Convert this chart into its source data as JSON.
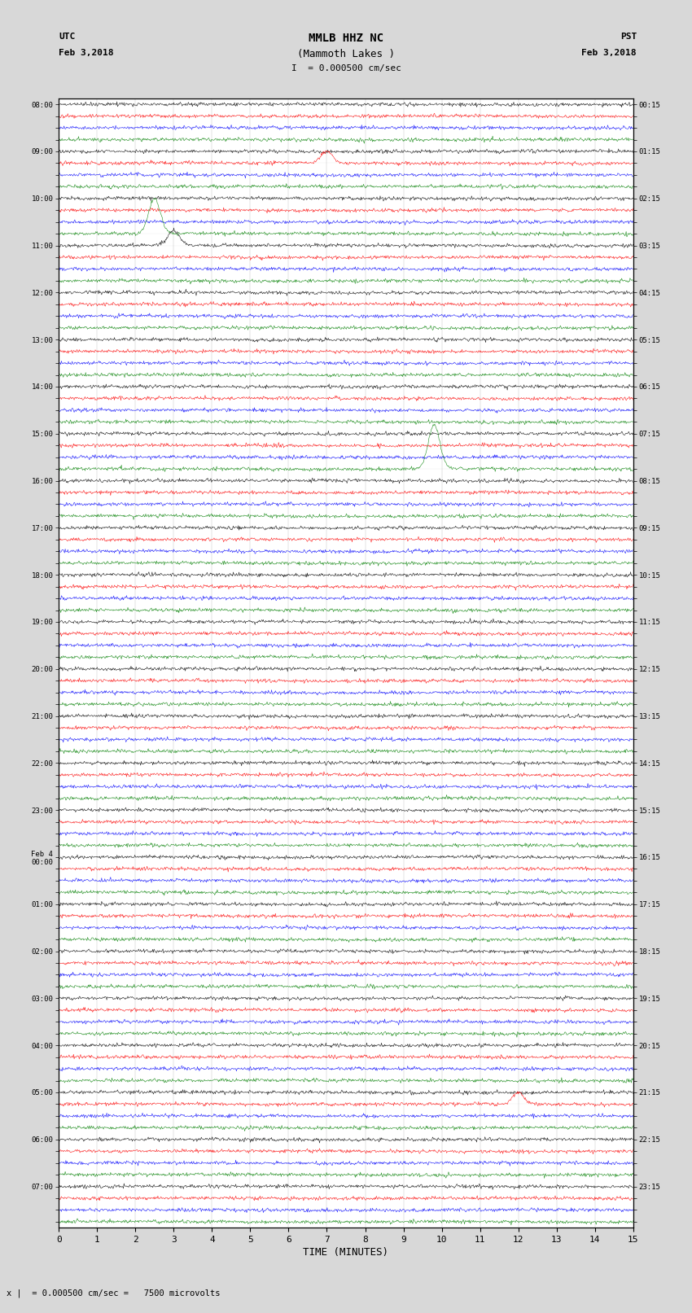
{
  "title_line1": "MMLB HHZ NC",
  "title_line2": "(Mammoth Lakes )",
  "title_line3": "I  = 0.000500 cm/sec",
  "left_header_line1": "UTC",
  "left_header_line2": "Feb 3,2018",
  "right_header_line1": "PST",
  "right_header_line2": "Feb 3,2018",
  "xlabel": "TIME (MINUTES)",
  "footer": "x |  = 0.000500 cm/sec =   7500 microvolts",
  "xlim": [
    0,
    15
  ],
  "xticks": [
    0,
    1,
    2,
    3,
    4,
    5,
    6,
    7,
    8,
    9,
    10,
    11,
    12,
    13,
    14,
    15
  ],
  "trace_colors": [
    "black",
    "red",
    "blue",
    "green"
  ],
  "n_rows": 96,
  "background_color": "#d8d8d8",
  "plot_bg": "#ffffff",
  "utc_labels": [
    "08:00",
    "",
    "",
    "",
    "09:00",
    "",
    "",
    "",
    "10:00",
    "",
    "",
    "",
    "11:00",
    "",
    "",
    "",
    "12:00",
    "",
    "",
    "",
    "13:00",
    "",
    "",
    "",
    "14:00",
    "",
    "",
    "",
    "15:00",
    "",
    "",
    "",
    "16:00",
    "",
    "",
    "",
    "17:00",
    "",
    "",
    "",
    "18:00",
    "",
    "",
    "",
    "19:00",
    "",
    "",
    "",
    "20:00",
    "",
    "",
    "",
    "21:00",
    "",
    "",
    "",
    "22:00",
    "",
    "",
    "",
    "23:00",
    "",
    "",
    "",
    "Feb 4\n00:00",
    "",
    "",
    "",
    "01:00",
    "",
    "",
    "",
    "02:00",
    "",
    "",
    "",
    "03:00",
    "",
    "",
    "",
    "04:00",
    "",
    "",
    "",
    "05:00",
    "",
    "",
    "",
    "06:00",
    "",
    "",
    "",
    "07:00",
    "",
    "",
    ""
  ],
  "pst_labels": [
    "00:15",
    "",
    "",
    "",
    "01:15",
    "",
    "",
    "",
    "02:15",
    "",
    "",
    "",
    "03:15",
    "",
    "",
    "",
    "04:15",
    "",
    "",
    "",
    "05:15",
    "",
    "",
    "",
    "06:15",
    "",
    "",
    "",
    "07:15",
    "",
    "",
    "",
    "08:15",
    "",
    "",
    "",
    "09:15",
    "",
    "",
    "",
    "10:15",
    "",
    "",
    "",
    "11:15",
    "",
    "",
    "",
    "12:15",
    "",
    "",
    "",
    "13:15",
    "",
    "",
    "",
    "14:15",
    "",
    "",
    "",
    "15:15",
    "",
    "",
    "",
    "16:15",
    "",
    "",
    "",
    "17:15",
    "",
    "",
    "",
    "18:15",
    "",
    "",
    "",
    "19:15",
    "",
    "",
    "",
    "20:15",
    "",
    "",
    "",
    "21:15",
    "",
    "",
    "",
    "22:15",
    "",
    "",
    "",
    "23:15",
    "",
    "",
    ""
  ],
  "noise_amplitude": 0.03,
  "seed": 42
}
